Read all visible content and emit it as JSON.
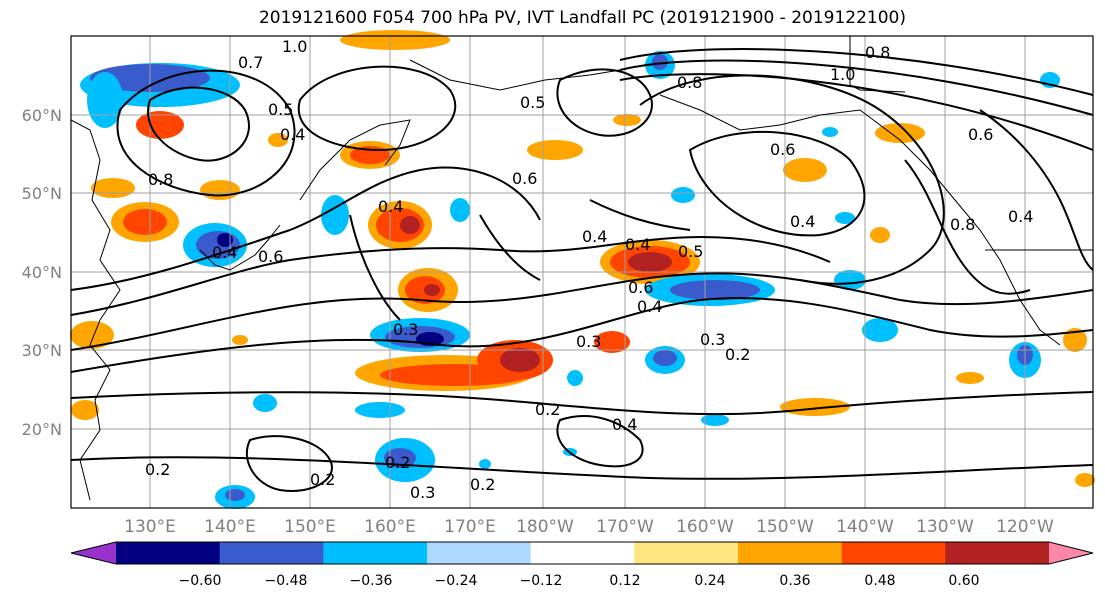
{
  "title": "2019121600 F054 700 hPa PV, IVT Landfall PC (2019121900 - 2019122100)",
  "map": {
    "lat_labels": [
      "60°N",
      "50°N",
      "40°N",
      "30°N",
      "20°N"
    ],
    "lon_labels": [
      "130°E",
      "140°E",
      "150°E",
      "160°E",
      "170°E",
      "180°W",
      "170°W",
      "160°W",
      "150°W",
      "140°W",
      "130°W",
      "120°W"
    ],
    "contour_labels": [
      "1.0",
      "0.7",
      "0.5",
      "0.4",
      "0.8",
      "0.6",
      "0.4",
      "0.4",
      "0.6",
      "0.3",
      "0.2",
      "0.2",
      "0.3",
      "0.2",
      "0.4",
      "0.3",
      "0.2",
      "0.2",
      "0.5",
      "0.4",
      "0.6",
      "0.4",
      "0.8",
      "0.5",
      "1.0",
      "0.6",
      "0.8",
      "0.6",
      "0.4",
      "0.8",
      "0.4",
      "0.3",
      "0.2",
      "0.4"
    ]
  },
  "colorbar": {
    "tick_labels": [
      "−0.60",
      "−0.48",
      "−0.36",
      "−0.24",
      "−0.12",
      "0.12",
      "0.24",
      "0.36",
      "0.48",
      "0.60"
    ],
    "colors": [
      "#9932cc",
      "#000080",
      "#3a5bcc",
      "#00bfff",
      "#add8ff",
      "#ffffff",
      "#ffe680",
      "#ffa500",
      "#ff4500",
      "#b22222",
      "#ff88aa"
    ]
  }
}
